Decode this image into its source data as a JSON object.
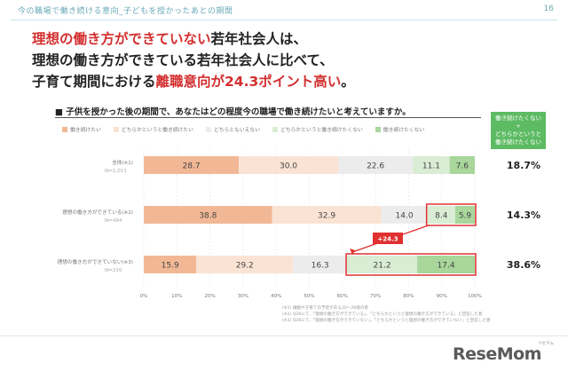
{
  "header": {
    "section_title": "今の職場で働き続ける意向_子どもを授かったあとの期間",
    "page_number": "16"
  },
  "headline": {
    "line1_red": "理想の働き方ができていない",
    "line1_rest": "若年社会人は、",
    "line2": "理想の働き方ができている若年社会人に比べて、",
    "line3_pre": "子育て期間における",
    "line3_red": "離職意向が24.3ポイント高い",
    "line3_post": "。"
  },
  "question": "■ 子供を授かった後の期間で、あなたはどの程度今の職場で働き続けたいと考えていますか。",
  "badge": {
    "line1": "働き続けたくない",
    "line2": "+",
    "line3": "どちらかというと",
    "line4": "働き続けたくない"
  },
  "colors": {
    "c1": "#f2b896",
    "c2": "#fbe3d4",
    "c3": "#ececec",
    "c4": "#d9ecd4",
    "c5": "#a8d69b",
    "highlight": "#e03030"
  },
  "chart_data": {
    "type": "stacked-bar-horizontal",
    "legend": [
      "働き続けたい",
      "どちらかというと働き続けたい",
      "どちらともいえない",
      "どちらかというと働き続けたくない",
      "働き続けたくない"
    ],
    "rows": [
      {
        "label": "全体(※1)",
        "n": "N=1,011",
        "values": [
          28.7,
          30.0,
          22.6,
          11.1,
          7.6
        ],
        "right": "18.7%"
      },
      {
        "label": "理想の働き方ができている(※2)",
        "n": "N=494",
        "values": [
          38.8,
          32.9,
          14.0,
          8.4,
          5.9
        ],
        "right": "14.3%"
      },
      {
        "label": "理想の働き方ができていない(※3)",
        "n": "N=210",
        "values": [
          15.9,
          29.2,
          16.3,
          21.2,
          17.4
        ],
        "right": "38.6%"
      }
    ],
    "x_ticks": [
      "0%",
      "10%",
      "20%",
      "30%",
      "40%",
      "50%",
      "60%",
      "70%",
      "80%",
      "90%",
      "100%"
    ],
    "xlim": [
      0,
      100
    ],
    "annotation": "+24.3"
  },
  "footnotes": {
    "n1": "(※1) 婚姻や子育ての予定がある20～29歳の者",
    "n2": "(※2) Q26にて、「理想の働き方ができている」、「どちらかというと理想の働き方ができている」と回答した者",
    "n3": "(※3) Q26にて、「理想の働き方ができていない」、「どちらかというと理想の働き方ができていない」と回答した者"
  },
  "logo": {
    "small": "リセマム",
    "text": "ReseMom"
  }
}
